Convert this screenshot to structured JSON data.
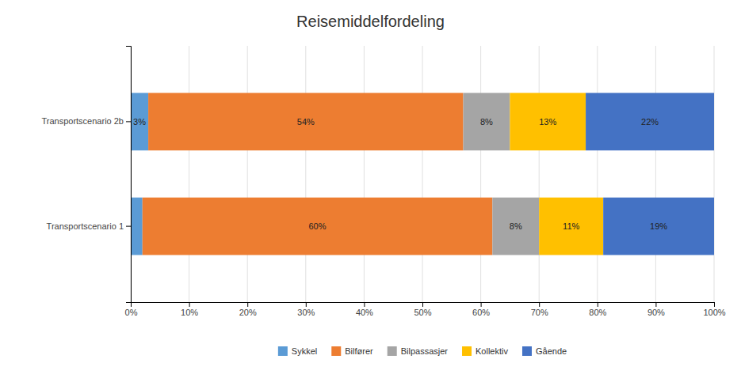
{
  "chart_data": {
    "type": "bar",
    "orientation": "horizontal",
    "stacked": true,
    "title": "Reisemiddelfordeling",
    "categories": [
      "Transportscenario 1",
      "Transportscenario 2b"
    ],
    "series": [
      {
        "name": "Sykkel",
        "color": "#5b9bd5",
        "values": [
          2,
          3
        ],
        "value_labels": [
          null,
          "3%"
        ]
      },
      {
        "name": "Bilfører",
        "color": "#ed7d31",
        "values": [
          60,
          54
        ],
        "value_labels": [
          "60%",
          "54%"
        ]
      },
      {
        "name": "Bilpassasjer",
        "color": "#a5a5a5",
        "values": [
          8,
          8
        ],
        "value_labels": [
          "8%",
          "8%"
        ]
      },
      {
        "name": "Kollektiv",
        "color": "#ffc000",
        "values": [
          11,
          13
        ],
        "value_labels": [
          "11%",
          "13%"
        ]
      },
      {
        "name": "Gående",
        "color": "#4472c4",
        "values": [
          19,
          22
        ],
        "value_labels": [
          "19%",
          "22%"
        ]
      }
    ],
    "xlim": [
      0,
      100
    ],
    "xticks": [
      {
        "value": 0,
        "label": "0%"
      },
      {
        "value": 10,
        "label": "10%"
      },
      {
        "value": 20,
        "label": "20%"
      },
      {
        "value": 30,
        "label": "30%"
      },
      {
        "value": 40,
        "label": "40%"
      },
      {
        "value": 50,
        "label": "50%"
      },
      {
        "value": 60,
        "label": "60%"
      },
      {
        "value": 70,
        "label": "70%"
      },
      {
        "value": 80,
        "label": "80%"
      },
      {
        "value": 90,
        "label": "90%"
      },
      {
        "value": 100,
        "label": "100%"
      }
    ],
    "grid": true,
    "data_labels": true,
    "legend": "bottom"
  }
}
